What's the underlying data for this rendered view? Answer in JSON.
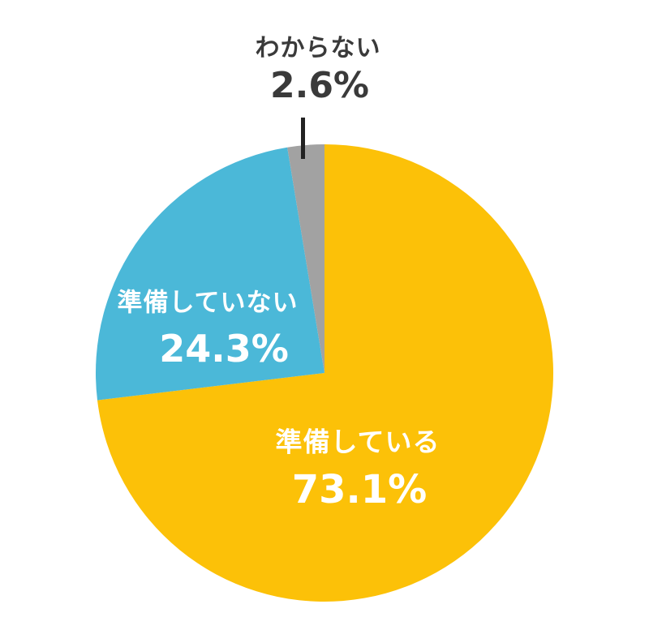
{
  "chart_data": {
    "type": "pie",
    "labels": [
      "準備している",
      "準備していない",
      "わからない"
    ],
    "values": [
      73.1,
      24.3,
      2.6
    ],
    "display_values": [
      "73.1%",
      "24.3%",
      "2.6%"
    ],
    "slice_ids": [
      "preparing",
      "not-preparing",
      "dont-know"
    ],
    "colors": [
      "#FCC108",
      "#4BB8D8",
      "#A2A2A2"
    ],
    "start_angle_deg": 0,
    "direction": "clockwise",
    "legend_position": "none",
    "background_color": "#ffffff",
    "outside_label_color": "#3a3a3a",
    "inside_label_color": "#ffffff",
    "leader_line_color": "#222222",
    "title": ""
  }
}
